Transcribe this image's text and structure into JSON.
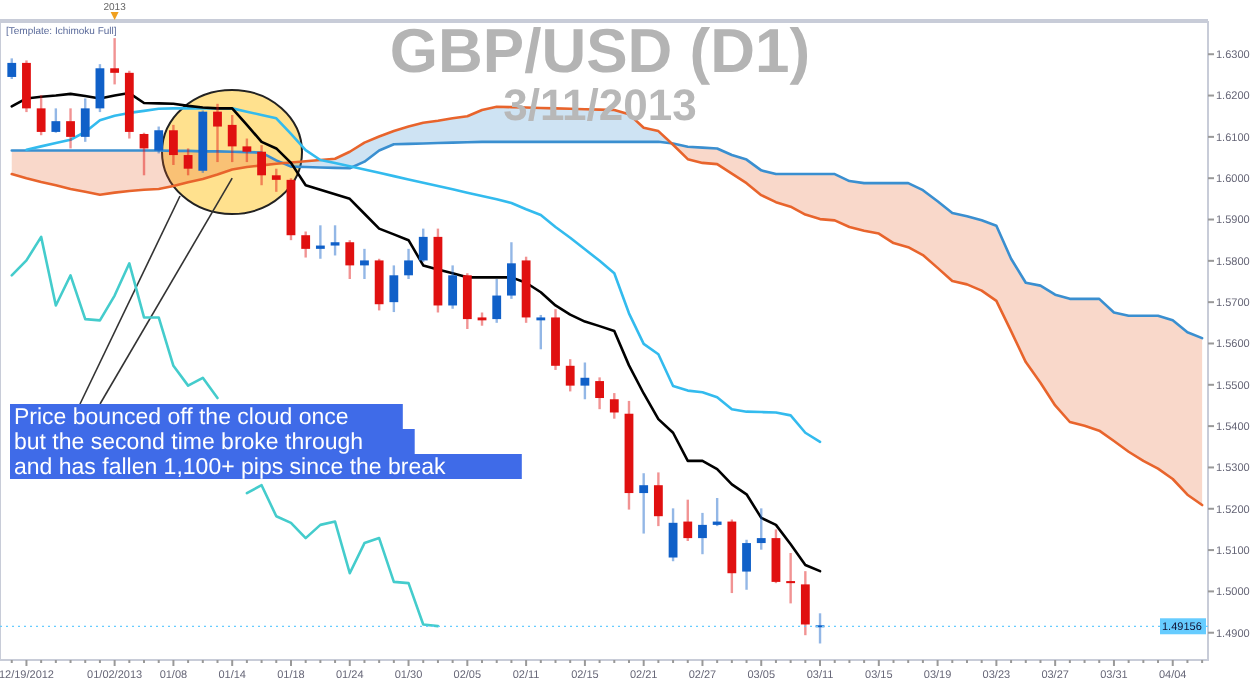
{
  "chart_data": {
    "type": "candlestick",
    "title": "GBP/USD (D1)",
    "subtitle": "3/11/2013",
    "categories": [
      null,
      "12/19/2012",
      null,
      null,
      null,
      null,
      null,
      "01/02/2013",
      null,
      null,
      null,
      "01/08",
      null,
      null,
      null,
      "01/14",
      null,
      null,
      null,
      "01/18",
      null,
      null,
      null,
      "01/24",
      null,
      null,
      null,
      "01/30",
      null,
      null,
      null,
      "02/05",
      null,
      null,
      null,
      "02/11",
      null,
      null,
      null,
      "02/15",
      null,
      null,
      null,
      "02/21",
      null,
      null,
      null,
      "02/27",
      null,
      null,
      null,
      "03/05",
      null,
      null,
      null,
      "03/11",
      null,
      null,
      null,
      "03/15",
      null,
      null,
      null,
      "03/19",
      null,
      null,
      null,
      "03/23",
      null,
      null,
      null,
      "03/27",
      null,
      null,
      null,
      "03/31",
      null,
      null,
      null,
      "04/04",
      null,
      null
    ],
    "ohlc": [
      [
        1.6245,
        1.629,
        1.624,
        1.6279
      ],
      [
        1.6279,
        1.6285,
        1.616,
        1.6169
      ],
      [
        1.6169,
        1.6201,
        1.6104,
        1.6112
      ],
      [
        1.6112,
        1.6169,
        1.611,
        1.6138
      ],
      [
        1.6138,
        1.6169,
        1.6072,
        1.61
      ],
      [
        1.61,
        1.6193,
        1.6088,
        1.6169
      ],
      [
        1.6169,
        1.6276,
        1.616,
        1.6266
      ],
      [
        1.6266,
        1.6339,
        1.6227,
        1.6255
      ],
      [
        1.6255,
        1.626,
        1.6096,
        1.6112
      ],
      [
        1.6107,
        1.611,
        1.6007,
        1.6072
      ],
      [
        1.6067,
        1.6125,
        1.606,
        1.6116
      ],
      [
        1.6116,
        1.6129,
        1.6032,
        1.6056
      ],
      [
        1.6056,
        1.6072,
        1.6007,
        1.6023
      ],
      [
        1.6018,
        1.6164,
        1.6013,
        1.6161
      ],
      [
        1.6161,
        1.618,
        1.6039,
        1.6125
      ],
      [
        1.6129,
        1.6153,
        1.6039,
        1.6077
      ],
      [
        1.6077,
        1.6096,
        1.6039,
        1.6064
      ],
      [
        1.6064,
        1.608,
        1.5983,
        1.6007
      ],
      [
        1.6007,
        1.6023,
        1.5967,
        1.5996
      ],
      [
        1.5996,
        1.6,
        1.585,
        1.5862
      ],
      [
        1.5862,
        1.5871,
        1.5808,
        1.5829
      ],
      [
        1.5829,
        1.5886,
        1.5805,
        1.5837
      ],
      [
        1.5837,
        1.5886,
        1.5813,
        1.5845
      ],
      [
        1.5845,
        1.585,
        1.5756,
        1.5789
      ],
      [
        1.5789,
        1.5829,
        1.5756,
        1.5801
      ],
      [
        1.5801,
        1.5805,
        1.568,
        1.5695
      ],
      [
        1.57,
        1.5789,
        1.5676,
        1.5765
      ],
      [
        1.5765,
        1.5829,
        1.5756,
        1.5801
      ],
      [
        1.5801,
        1.5878,
        1.5797,
        1.5858
      ],
      [
        1.5858,
        1.5878,
        1.5675,
        1.5692
      ],
      [
        1.5692,
        1.5789,
        1.5684,
        1.5765
      ],
      [
        1.5765,
        1.577,
        1.5635,
        1.5659
      ],
      [
        1.5663,
        1.5675,
        1.5643,
        1.5656
      ],
      [
        1.5659,
        1.5756,
        1.565,
        1.5716
      ],
      [
        1.5716,
        1.5845,
        1.5708,
        1.5794
      ],
      [
        1.5801,
        1.581,
        1.565,
        1.5663
      ],
      [
        1.5656,
        1.5669,
        1.5586,
        1.5663
      ],
      [
        1.5663,
        1.5683,
        1.5536,
        1.5546
      ],
      [
        1.5546,
        1.5562,
        1.5484,
        1.5498
      ],
      [
        1.5498,
        1.5554,
        1.5465,
        1.5517
      ],
      [
        1.5509,
        1.5518,
        1.5441,
        1.5468
      ],
      [
        1.5465,
        1.548,
        1.5418,
        1.5433
      ],
      [
        1.543,
        1.5461,
        1.5198,
        1.5238
      ],
      [
        1.5238,
        1.5286,
        1.514,
        1.5257
      ],
      [
        1.5257,
        1.5288,
        1.5158,
        1.5182
      ],
      [
        1.5082,
        1.5201,
        1.5073,
        1.5166
      ],
      [
        1.5169,
        1.5222,
        1.5122,
        1.5129
      ],
      [
        1.5129,
        1.519,
        1.509,
        1.5161
      ],
      [
        1.5161,
        1.5226,
        1.5158,
        1.5169
      ],
      [
        1.5169,
        1.5174,
        1.4996,
        1.5044
      ],
      [
        1.5048,
        1.5125,
        1.5004,
        1.5117
      ],
      [
        1.5117,
        1.5201,
        1.5101,
        1.5129
      ],
      [
        1.5129,
        1.515,
        1.502,
        1.5023
      ],
      [
        1.5025,
        1.5093,
        1.4971,
        1.502
      ],
      [
        1.5017,
        1.5049,
        1.4894,
        1.492
      ],
      [
        1.4918,
        1.4947,
        1.4874,
        1.49156
      ],
      null,
      null,
      null,
      null,
      null,
      null,
      null,
      null,
      null,
      null,
      null,
      null,
      null,
      null,
      null,
      null,
      null,
      null,
      null,
      null,
      null,
      null,
      null,
      null,
      null,
      null
    ],
    "colors": [
      "#1060c8",
      "#e01010",
      "#e01010",
      "#1060c8",
      "#e01010",
      "#1060c8",
      "#1060c8",
      "#e01010",
      "#e01010",
      "#e01010",
      "#1060c8",
      "#e01010",
      "#e01010",
      "#1060c8",
      "#e01010",
      "#e01010",
      "#e01010",
      "#e01010",
      "#e01010",
      "#e01010",
      "#e01010",
      "#1060c8",
      "#1060c8",
      "#e01010",
      "#1060c8",
      "#e01010",
      "#1060c8",
      "#1060c8",
      "#1060c8",
      "#e01010",
      "#1060c8",
      "#e01010",
      "#e01010",
      "#1060c8",
      "#1060c8",
      "#e01010",
      "#1060c8",
      "#e01010",
      "#e01010",
      "#1060c8",
      "#e01010",
      "#e01010",
      "#e01010",
      "#1060c8",
      "#e01010",
      "#1060c8",
      "#e01010",
      "#1060c8",
      "#1060c8",
      "#e01010",
      "#1060c8",
      "#1060c8",
      "#e01010",
      "#e01010",
      "#e01010",
      "#1060c8",
      null,
      null,
      null,
      null,
      null,
      null,
      null,
      null,
      null,
      null,
      null,
      null,
      null,
      null,
      null,
      null,
      null,
      null,
      null,
      null,
      null,
      null,
      null,
      null,
      null,
      null
    ],
    "series": [
      {
        "type": "line",
        "color": "#3a8fd0",
        "values": [
          1.6067,
          1.6067,
          1.6067,
          1.6067,
          1.6067,
          1.6067,
          1.6067,
          1.6067,
          1.6067,
          1.6067,
          1.6067,
          1.6066,
          1.6066,
          1.6065,
          1.6065,
          1.6064,
          1.6063,
          1.6062,
          1.6043,
          1.6028,
          1.6027,
          1.6026,
          1.6025,
          1.6024,
          1.604,
          1.6067,
          1.6082,
          1.6083,
          1.6084,
          1.6085,
          1.6086,
          1.6087,
          1.6088,
          1.6088,
          1.6088,
          1.6088,
          1.6088,
          1.6088,
          1.6088,
          1.6088,
          1.6088,
          1.6088,
          1.6088,
          1.6088,
          1.6088,
          1.6084,
          1.6076,
          1.6074,
          1.6072,
          1.6056,
          1.6045,
          1.6019,
          1.601,
          1.601,
          1.601,
          1.601,
          1.601,
          1.5993,
          1.5988,
          1.5988,
          1.5988,
          1.5988,
          1.5971,
          1.5944,
          1.5916,
          1.5908,
          1.5898,
          1.5885,
          1.5805,
          1.5747,
          1.574,
          1.5718,
          1.5708,
          1.5708,
          1.5708,
          1.5675,
          1.5667,
          1.5667,
          1.5667,
          1.5656,
          1.5627,
          1.5613
        ]
      },
      {
        "type": "line",
        "color": "#e8642c",
        "values": [
          1.601,
          1.6,
          1.5991,
          1.5983,
          1.5974,
          1.5967,
          1.596,
          1.5965,
          1.5969,
          1.5972,
          1.5974,
          1.5981,
          1.599,
          1.5998,
          1.6009,
          1.6021,
          1.6027,
          1.6031,
          1.6035,
          1.6038,
          1.6041,
          1.6044,
          1.6047,
          1.6064,
          1.6086,
          1.6101,
          1.6114,
          1.6125,
          1.6134,
          1.6139,
          1.6145,
          1.615,
          1.6165,
          1.6173,
          1.6172,
          1.6171,
          1.617,
          1.6169,
          1.6168,
          1.6167,
          1.6166,
          1.6165,
          1.6155,
          1.6122,
          1.6114,
          1.6081,
          1.6046,
          1.6037,
          1.6034,
          1.6011,
          1.5988,
          1.5959,
          1.5942,
          1.5931,
          1.5912,
          1.5901,
          1.5898,
          1.5882,
          1.5873,
          1.5866,
          1.5843,
          1.5833,
          1.5814,
          1.5783,
          1.5751,
          1.5743,
          1.5728,
          1.5703,
          1.563,
          1.5555,
          1.5505,
          1.545,
          1.541,
          1.5401,
          1.5389,
          1.5364,
          1.5338,
          1.5316,
          1.5297,
          1.5272,
          1.5234,
          1.5209
        ]
      },
      {
        "type": "line",
        "color": "#44cccc",
        "values": [
          1.5765,
          1.5801,
          1.5858,
          1.5692,
          1.5765,
          1.5659,
          1.5656,
          1.5716,
          1.5794,
          1.5663,
          1.5663,
          1.5546,
          1.5498,
          1.5517,
          1.5468,
          null,
          1.5238,
          1.5257,
          1.5182,
          1.5166,
          1.5129,
          1.5161,
          1.5169,
          1.5044,
          1.5117,
          1.5129,
          1.5023,
          1.502,
          1.492,
          1.4916,
          null,
          null,
          null,
          null,
          null,
          null,
          null,
          null,
          null,
          null,
          null,
          null,
          null,
          null,
          null,
          null,
          null,
          null,
          null,
          null,
          null,
          null,
          null,
          null,
          null,
          null,
          null,
          null,
          null,
          null,
          null,
          null,
          null,
          null,
          null,
          null,
          null,
          null,
          null,
          null,
          null,
          null,
          null,
          null,
          null,
          null,
          null,
          null,
          null,
          null,
          null,
          null
        ]
      },
      {
        "type": "line",
        "color": "#33bbee",
        "values": [
          null,
          1.6069,
          1.6077,
          1.6085,
          1.6093,
          1.6112,
          1.614,
          1.6151,
          1.6158,
          1.6163,
          1.6168,
          1.6169,
          1.6169,
          1.6169,
          1.6169,
          1.6169,
          1.6161,
          1.6153,
          1.6145,
          1.6107,
          1.6068,
          1.6044,
          1.6037,
          1.6029,
          1.6021,
          1.6013,
          1.6005,
          1.5997,
          1.5989,
          1.5981,
          1.5973,
          1.5965,
          1.5957,
          1.5949,
          1.594,
          1.5925,
          1.5911,
          1.5882,
          1.5856,
          1.5828,
          1.58,
          1.577,
          1.5673,
          1.5599,
          1.5574,
          1.5497,
          1.5486,
          1.5482,
          1.547,
          1.5441,
          1.5435,
          1.5434,
          1.5433,
          1.5426,
          1.5384,
          1.5362,
          null,
          null,
          null,
          null,
          null,
          null,
          null,
          null,
          null,
          null,
          null,
          null,
          null,
          null,
          null,
          null,
          null,
          null,
          null,
          null,
          null,
          null,
          null,
          null,
          null,
          null
        ]
      },
      {
        "type": "line",
        "color": "#000000",
        "values": [
          1.6174,
          1.6193,
          1.6197,
          1.62,
          1.6204,
          1.6199,
          1.6193,
          1.62,
          1.6206,
          1.6182,
          1.6181,
          1.618,
          1.6175,
          1.6171,
          1.6169,
          1.6169,
          1.6129,
          1.6088,
          1.6072,
          1.6037,
          1.5983,
          1.5972,
          1.5961,
          1.595,
          1.5914,
          1.5878,
          1.5864,
          1.585,
          1.5789,
          1.5779,
          1.577,
          1.576,
          1.576,
          1.576,
          1.576,
          1.5747,
          1.5724,
          1.5692,
          1.567,
          1.5653,
          1.5642,
          1.563,
          1.5547,
          1.5479,
          1.5417,
          1.5384,
          1.5316,
          1.5316,
          1.5296,
          1.5259,
          1.5235,
          1.5178,
          1.5161,
          1.5114,
          1.5064,
          1.5049,
          null,
          null,
          null,
          null,
          null,
          null,
          null,
          null,
          null,
          null,
          null,
          null,
          null,
          null,
          null,
          null,
          null,
          null,
          null,
          null,
          null,
          null,
          null,
          null,
          null,
          null
        ]
      }
    ],
    "ylim": [
      1.4834,
      1.6378
    ],
    "yticks": [
      {
        "value": 1.49,
        "label": "1.4900"
      },
      {
        "value": 1.5,
        "label": "1.5000"
      },
      {
        "value": 1.51,
        "label": "1.5100"
      },
      {
        "value": 1.52,
        "label": "1.5200"
      },
      {
        "value": 1.53,
        "label": "1.5300"
      },
      {
        "value": 1.54,
        "label": "1.5400"
      },
      {
        "value": 1.55,
        "label": "1.5500"
      },
      {
        "value": 1.56,
        "label": "1.5600"
      },
      {
        "value": 1.57,
        "label": "1.5700"
      },
      {
        "value": 1.58,
        "label": "1.5800"
      },
      {
        "value": 1.59,
        "label": "1.5900"
      },
      {
        "value": 1.6,
        "label": "1.6000"
      },
      {
        "value": 1.61,
        "label": "1.6100"
      },
      {
        "value": 1.62,
        "label": "1.6200"
      },
      {
        "value": 1.63,
        "label": "1.6300"
      }
    ],
    "ref_lines": [
      {
        "axis": "y",
        "value": 1.49156,
        "label": "1.49156",
        "color": "#66ccff"
      }
    ],
    "annotations": [
      "[Template: Ichimoku Full]",
      "2013",
      {
        "text": "Price bounced off the cloud once\nbut the second time broke through\nand has fallen 1,100+ pips since the break",
        "x": "01/14",
        "y": 1.6
      }
    ]
  }
}
